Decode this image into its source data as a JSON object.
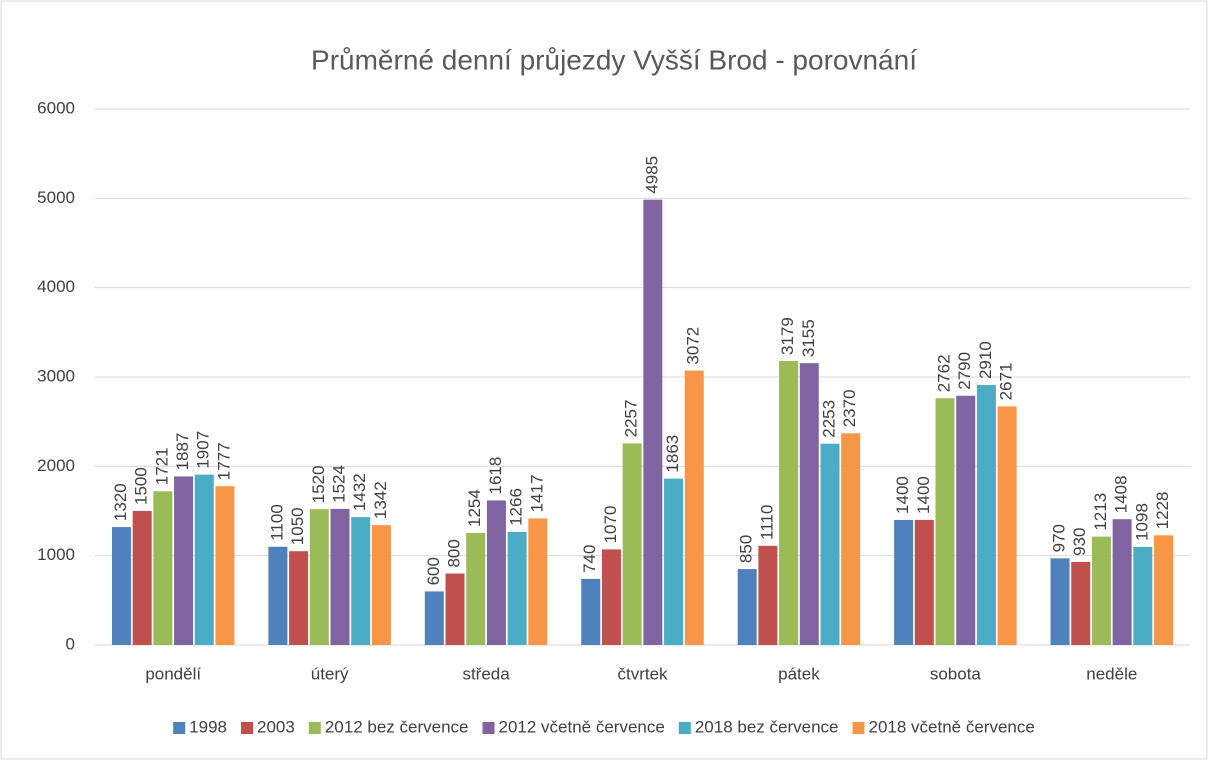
{
  "chart_data": {
    "type": "bar",
    "title": "Průměrné denní průjezdy Vyšší Brod - porovnání",
    "categories": [
      "pondělí",
      "úterý",
      "středa",
      "čtvrtek",
      "pátek",
      "sobota",
      "neděle"
    ],
    "series": [
      {
        "name": "1998",
        "color": "#4f81bd",
        "values": [
          1320,
          1100,
          600,
          740,
          850,
          1400,
          970
        ]
      },
      {
        "name": "2003",
        "color": "#c0504d",
        "values": [
          1500,
          1050,
          800,
          1070,
          1110,
          1400,
          930
        ]
      },
      {
        "name": "2012 bez července",
        "color": "#9bbb59",
        "values": [
          1721,
          1520,
          1254,
          2257,
          3179,
          2762,
          1213
        ]
      },
      {
        "name": "2012 včetně července",
        "color": "#8064a2",
        "values": [
          1887,
          1524,
          1618,
          4985,
          3155,
          2790,
          1408
        ]
      },
      {
        "name": "2018 bez července",
        "color": "#4bacc6",
        "values": [
          1907,
          1432,
          1266,
          1863,
          2253,
          2910,
          1098
        ]
      },
      {
        "name": "2018 včetně července",
        "color": "#f79646",
        "values": [
          1777,
          1342,
          1417,
          3072,
          2370,
          2671,
          1228
        ]
      }
    ],
    "ylim": [
      0,
      6000
    ],
    "yticks": [
      0,
      1000,
      2000,
      3000,
      4000,
      5000,
      6000
    ],
    "grid": true,
    "legend": "bottom"
  }
}
